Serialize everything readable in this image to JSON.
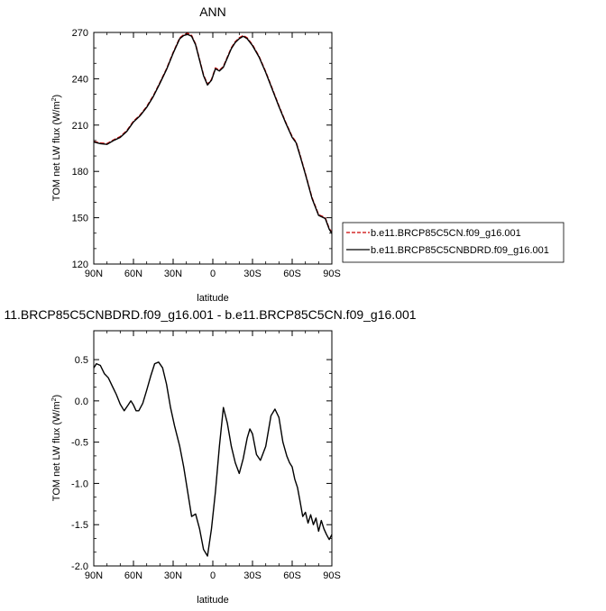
{
  "chart_data": [
    {
      "type": "line",
      "title": "ANN",
      "xlabel": "latitude",
      "ylabel": "TOM net LW flux (W/m",
      "ylabel_sup": "2",
      "ylabel_end": ")",
      "xlim": [
        90,
        -90
      ],
      "ylim": [
        120,
        270
      ],
      "xticks": [
        90,
        60,
        30,
        0,
        -30,
        -60,
        -90
      ],
      "xtick_labels": [
        "90N",
        "60N",
        "30N",
        "0",
        "30S",
        "60S",
        "90S"
      ],
      "yticks": [
        120,
        150,
        180,
        210,
        240,
        270
      ],
      "ytick_labels": [
        "120",
        "150",
        "180",
        "210",
        "240",
        "270"
      ],
      "legend_position": "right",
      "series": [
        {
          "name": "b.e11.BRCP85C5CN.f09_g16.001",
          "color": "#cc0000",
          "dash": "dashed",
          "x": [
            90,
            85,
            80,
            75,
            70,
            65,
            60,
            55,
            50,
            45,
            40,
            35,
            30,
            25,
            22,
            19,
            16,
            13,
            10,
            7,
            4,
            1,
            -2,
            -5,
            -8,
            -11,
            -14,
            -17,
            -20,
            -23,
            -26,
            -30,
            -35,
            -40,
            -45,
            -50,
            -55,
            -60,
            -63,
            -66,
            -70,
            -75,
            -80,
            -85,
            -88,
            -90
          ],
          "y": [
            199.4,
            198.4,
            198,
            200.4,
            202.5,
            206.5,
            212.5,
            216.5,
            222,
            229,
            237.5,
            246.5,
            257,
            266.5,
            268.5,
            269.5,
            268,
            262.5,
            252.5,
            242.5,
            236.5,
            239.5,
            247,
            245.5,
            248,
            254,
            260,
            264,
            266.5,
            268,
            266.5,
            262,
            254.5,
            244.5,
            233.5,
            222.5,
            212,
            202.5,
            199,
            190.5,
            178.5,
            163,
            152,
            150,
            143,
            140.5
          ]
        },
        {
          "name": "b.e11.BRCP85C5CNBDRD.f09_g16.001",
          "color": "#000000",
          "dash": "solid",
          "x": [
            90,
            85,
            80,
            75,
            70,
            65,
            60,
            55,
            50,
            45,
            40,
            35,
            30,
            25,
            22,
            19,
            16,
            13,
            10,
            7,
            4,
            1,
            -2,
            -5,
            -8,
            -11,
            -14,
            -17,
            -20,
            -23,
            -26,
            -30,
            -35,
            -40,
            -45,
            -50,
            -55,
            -60,
            -63,
            -66,
            -70,
            -75,
            -80,
            -85,
            -88,
            -90
          ],
          "y": [
            199,
            198,
            197.5,
            200,
            202,
            206,
            212,
            216,
            221.5,
            228.5,
            237,
            246,
            256.5,
            266,
            268,
            268.7,
            267.5,
            262,
            252,
            242,
            236,
            239,
            246.5,
            245,
            247.5,
            253.5,
            259.5,
            263.5,
            266,
            267.5,
            266,
            261.5,
            254,
            244,
            233,
            222,
            211.5,
            202,
            198.5,
            190,
            178,
            162.5,
            151.5,
            149.5,
            142.5,
            139.8
          ]
        }
      ]
    },
    {
      "type": "line",
      "title": "11.BRCP85C5CNBDRD.f09_g16.001 - b.e11.BRCP85C5CN.f09_g16.001",
      "xlabel": "latitude",
      "ylabel": "TOM net LW flux (W/m",
      "ylabel_sup": "2",
      "ylabel_end": ")",
      "xlim": [
        90,
        -90
      ],
      "ylim": [
        -2.0,
        0.85
      ],
      "xticks": [
        90,
        60,
        30,
        0,
        -30,
        -60,
        -90
      ],
      "xtick_labels": [
        "90N",
        "60N",
        "30N",
        "0",
        "30S",
        "60S",
        "90S"
      ],
      "yticks": [
        -2.0,
        -1.5,
        -1.0,
        -0.5,
        0.0,
        0.5
      ],
      "ytick_labels": [
        "-2.0",
        "-1.5",
        "-1.0",
        "-0.5",
        "0.0",
        "0.5"
      ],
      "series": [
        {
          "name": "",
          "color": "#000000",
          "dash": "solid",
          "x": [
            90,
            88,
            85,
            82,
            79,
            76,
            73,
            70,
            67,
            64,
            62,
            60,
            58,
            56,
            53,
            50,
            47,
            44,
            41,
            38,
            35,
            32,
            29,
            25,
            22,
            19,
            16,
            13,
            10,
            7,
            4,
            1,
            -2,
            -5,
            -8,
            -11,
            -14,
            -17,
            -20,
            -23,
            -26,
            -28,
            -30,
            -33,
            -36,
            -40,
            -44,
            -47,
            -50,
            -53,
            -56,
            -58,
            -60,
            -62,
            -64,
            -66,
            -68,
            -70,
            -72,
            -74,
            -76,
            -78,
            -80,
            -82,
            -84,
            -86,
            -88,
            -90
          ],
          "y": [
            0.4,
            0.45,
            0.43,
            0.33,
            0.28,
            0.18,
            0.08,
            -0.04,
            -0.12,
            -0.05,
            0.0,
            -0.05,
            -0.12,
            -0.12,
            -0.03,
            0.13,
            0.3,
            0.45,
            0.47,
            0.4,
            0.2,
            -0.08,
            -0.3,
            -0.55,
            -0.8,
            -1.1,
            -1.4,
            -1.37,
            -1.55,
            -1.8,
            -1.88,
            -1.55,
            -1.1,
            -0.55,
            -0.08,
            -0.27,
            -0.55,
            -0.75,
            -0.88,
            -0.7,
            -0.45,
            -0.34,
            -0.4,
            -0.65,
            -0.72,
            -0.55,
            -0.18,
            -0.1,
            -0.2,
            -0.5,
            -0.67,
            -0.75,
            -0.8,
            -0.95,
            -1.05,
            -1.22,
            -1.4,
            -1.35,
            -1.48,
            -1.38,
            -1.5,
            -1.42,
            -1.58,
            -1.45,
            -1.55,
            -1.62,
            -1.68,
            -1.62
          ]
        }
      ]
    }
  ]
}
